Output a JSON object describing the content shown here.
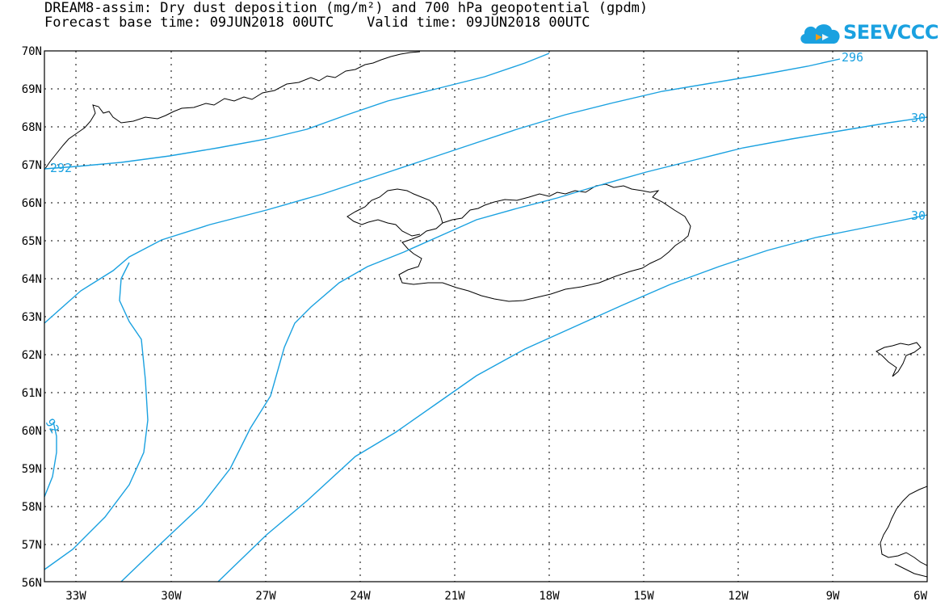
{
  "header": {
    "title_line1": "DREAM8-assim: Dry dust deposition (mg/m²) and 700 hPa geopotential (gpdm)",
    "title_line2": "Forecast base time: 09JUN2018 00UTC    Valid time: 09JUN2018 00UTC"
  },
  "logo": {
    "text": "SEEVCCC",
    "icon": "cloud-icon",
    "color": "#1aa1e0"
  },
  "map": {
    "lat_labels": [
      "70N",
      "69N",
      "68N",
      "67N",
      "66N",
      "65N",
      "64N",
      "63N",
      "62N",
      "61N",
      "60N",
      "59N",
      "58N",
      "57N",
      "56N"
    ],
    "lon_labels": [
      "33W",
      "30W",
      "27W",
      "24W",
      "21W",
      "18W",
      "15W",
      "12W",
      "9W",
      "6W"
    ],
    "contour_color": "#1aa1e0",
    "contour_labels": [
      "292",
      "296",
      "30",
      "30",
      "92"
    ]
  }
}
